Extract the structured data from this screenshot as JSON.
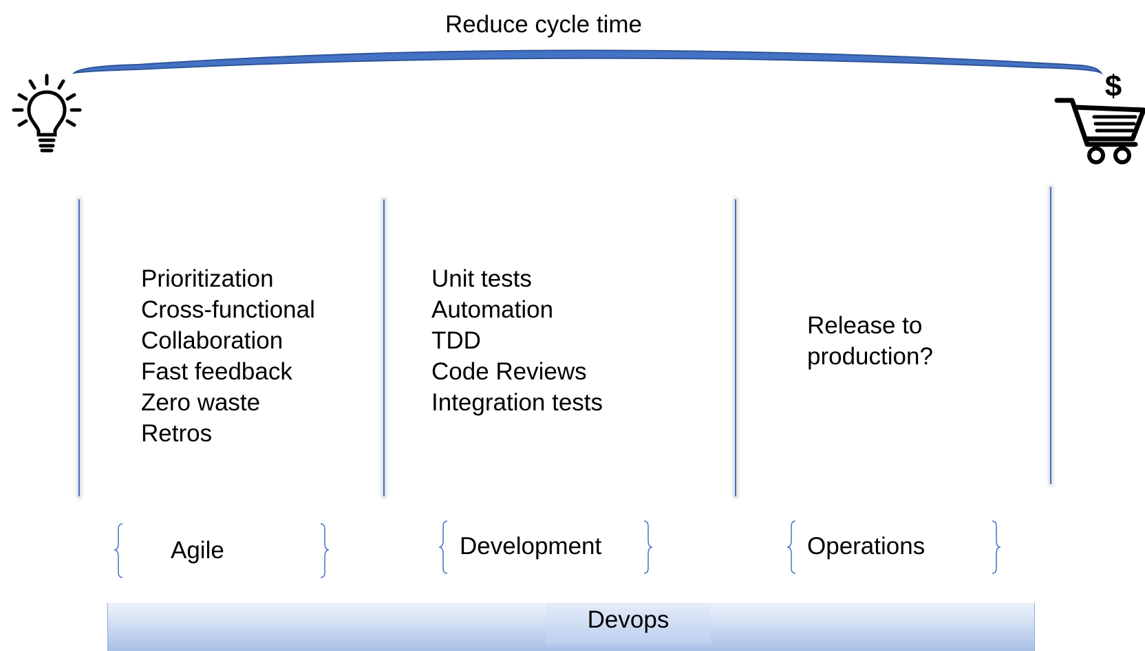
{
  "title": "Reduce cycle time",
  "icons": {
    "start": "lightbulb-icon",
    "end": "shopping-cart-dollar-icon"
  },
  "columns": [
    {
      "items": [
        "Prioritization",
        "Cross-functional",
        "Collaboration",
        "Fast feedback",
        "Zero waste",
        "Retros"
      ],
      "label": "Agile"
    },
    {
      "items": [
        "Unit tests",
        "Automation",
        "TDD",
        "Code Reviews",
        "Integration tests"
      ],
      "label": "Development"
    },
    {
      "items": [
        "Release to",
        "production?"
      ],
      "label": "Operations"
    }
  ],
  "bottom_label": "Devops",
  "colors": {
    "arc": "#4472c4",
    "lines": "#4472c4",
    "bar": "#b4c7e7"
  }
}
